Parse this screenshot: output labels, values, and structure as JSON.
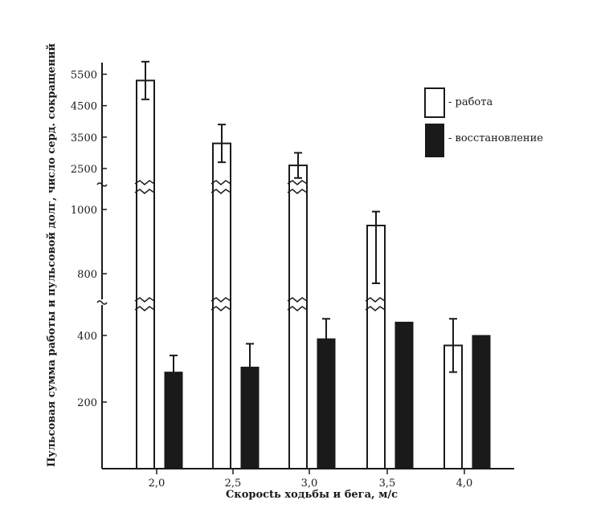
{
  "chart_data": {
    "type": "bar",
    "xlabel": "Скоросtь ходьбы и бега, м/с",
    "ylabel": "Пульсовая сумма работы и пульсовой долг, число серд. сокращений",
    "categories": [
      "2,0",
      "2,5",
      "3,0",
      "3,5",
      "4,0"
    ],
    "y_tick_labels": [
      "200",
      "400",
      "800",
      "1000",
      "2500",
      "3500",
      "4500",
      "5500"
    ],
    "axis_break": true,
    "grid": false,
    "legend_position": "top-right",
    "series": [
      {
        "name": "- работа",
        "fill": "#ffffff",
        "values": [
          5300,
          3300,
          2600,
          950,
          370
        ],
        "error": [
          600,
          600,
          400,
          180,
          80
        ]
      },
      {
        "name": "- восстановление",
        "fill": "#1a1a1a",
        "values": [
          290,
          305,
          390,
          440,
          400
        ],
        "error": [
          50,
          70,
          60,
          55,
          55
        ]
      }
    ]
  }
}
